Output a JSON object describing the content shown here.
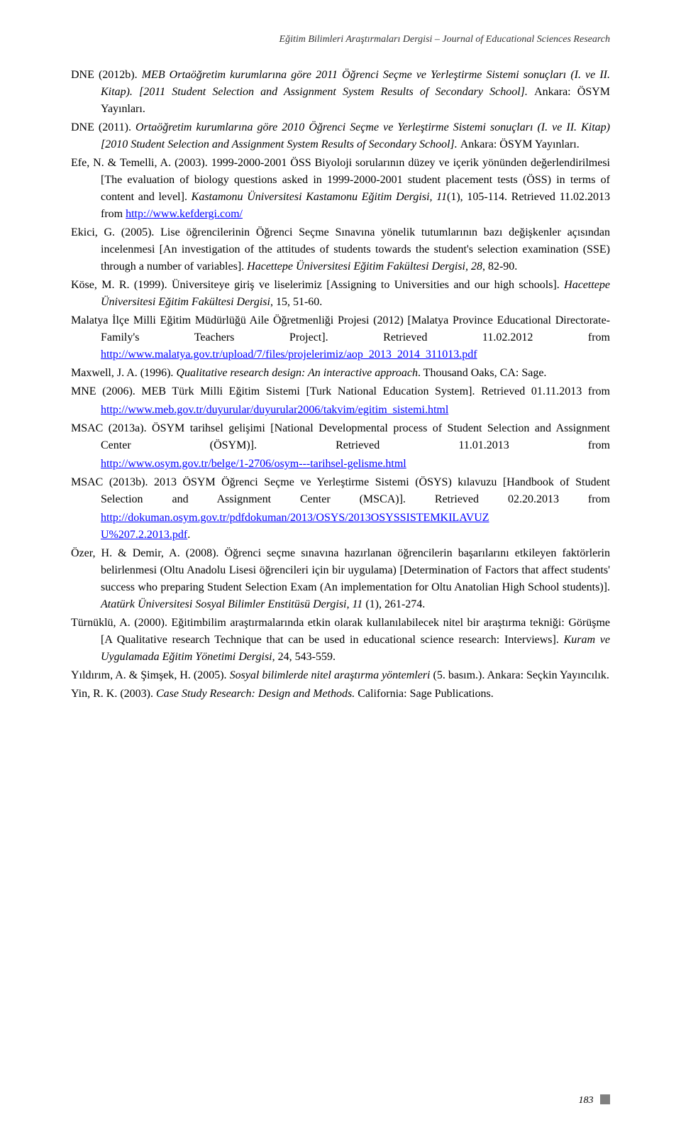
{
  "header": {
    "journal_title": "Eğitim Bilimleri Araştırmaları Dergisi – Journal of Educational Sciences Research"
  },
  "page_number": "183",
  "refs": {
    "dne2012b": {
      "pre": "DNE (2012b). ",
      "italic1": "MEB Ortaöğretim kurumlarına göre 2011 Öğrenci Seçme ve Yerleştirme Sistemi sonuçları (I. ve II. Kitap). [2011 Student Selection and Assignment System Results of Secondary School]. ",
      "post": "Ankara: ÖSYM Yayınları."
    },
    "dne2011": {
      "pre": "DNE (2011). ",
      "italic1": "Ortaöğretim kurumlarına göre 2010 Öğrenci Seçme ve Yerleştirme Sistemi sonuçları (I. ve II. Kitap) [2010 Student Selection and Assignment System Results of Secondary School]. ",
      "post": "Ankara: ÖSYM Yayınları."
    },
    "efe2003": {
      "pre": "Efe, N. & Temelli, A. (2003). 1999-2000-2001 ÖSS Biyoloji sorularının düzey ve içerik yönünden değerlendirilmesi [The evaluation of biology questions asked in 1999-2000-2001 student placement tests (ÖSS) in terms of content and level]. ",
      "italic1": "Kastamonu Üniversitesi Kastamonu Eğitim Dergisi, 11",
      "post1": "(1), 105-114. Retrieved 11.02.2013 from ",
      "link": "http://www.kefdergi.com/"
    },
    "ekici2005": {
      "pre": "Ekici, G. (2005). Lise öğrencilerinin Öğrenci Seçme Sınavına yönelik tutumlarının bazı değişkenler açısından incelenmesi [An investigation of the attitudes of students towards the student's selection examination (SSE) through a number of variables]. ",
      "italic1": "Hacettepe Üniversitesi Eğitim Fakültesi Dergisi, 28",
      "post": ", 82-90."
    },
    "kose1999": {
      "pre": "Köse, M. R. (1999). Üniversiteye giriş ve liselerimiz [Assigning to Universities and our high schools]. ",
      "italic1": "Hacettepe Üniversitesi Eğitim Fakültesi Dergisi",
      "post": ", 15, 51-60."
    },
    "malatya2012": {
      "pre": "Malatya İlçe Milli Eğitim Müdürlüğü Aile Öğretmenliği Projesi (2012) [Malatya Province Educational Directorate- Family's Teachers Project]. Retrieved 11.02.2012 from ",
      "link": "http://www.malatya.gov.tr/upload/7/files/projelerimiz/aop_2013_2014_311013.pdf"
    },
    "maxwell1996": {
      "pre": "Maxwell, J. A. (1996). ",
      "italic1": "Qualitative research design: An interactive approach",
      "post": ". Thousand Oaks, CA: Sage."
    },
    "mne2006": {
      "pre": "MNE (2006). MEB Türk Milli Eğitim Sistemi [Turk National Education System]. Retrieved 01.11.2013 from ",
      "link": "http://www.meb.gov.tr/duyurular/duyurular2006/takvim/egitim_sistemi.html"
    },
    "msac2013a": {
      "pre": "MSAC (2013a). ÖSYM tarihsel gelişimi [National Developmental process of Student Selection and Assignment Center (ÖSYM)]. Retrieved 11.01.2013 from ",
      "link": "http://www.osym.gov.tr/belge/1-2706/osym---tarihsel-gelisme.html"
    },
    "msac2013b": {
      "pre": "MSAC (2013b). 2013 ÖSYM Öğrenci Seçme ve Yerleştirme Sistemi (ÖSYS) kılavuzu [Handbook of Student Selection and Assignment Center (MSCA)]. Retrieved 02.20.2013 from ",
      "link1": "http://dokuman.osym.gov.tr/pdfdokuman/2013/OSYS/2013OSYSSISTEMKILAVUZ",
      "link2": "U%207.2.2013.pdf",
      "post": "."
    },
    "ozer2008": {
      "pre": "Özer, H. & Demir, A. (2008). Öğrenci seçme sınavına hazırlanan öğrencilerin başarılarını etkileyen faktörlerin belirlenmesi (Oltu Anadolu Lisesi öğrencileri için bir uygulama) [Determination of Factors that affect students' success who preparing Student Selection Exam (An implementation for Oltu Anatolian High School students)]. ",
      "italic1": "Atatürk Üniversitesi Sosyal Bilimler Enstitüsü Dergisi, 11 ",
      "post": "(1), 261-274."
    },
    "turnuklu2000": {
      "pre": "Türnüklü, A. (2000). Eğitimbilim araştırmalarında etkin olarak kullanılabilecek nitel bir araştırma tekniği: Görüşme [A Qualitative research Technique that can be used in educational science research: Interviews]. ",
      "italic1": "Kuram ve Uygulamada Eğitim Yönetimi Dergisi",
      "post": ", 24, 543-559."
    },
    "yildirim2005": {
      "pre": "Yıldırım, A. & Şimşek, H. (2005). ",
      "italic1": "Sosyal bilimlerde nitel araştırma yöntemleri ",
      "post": "(5. basım.). Ankara: Seçkin Yayıncılık."
    },
    "yin2003": {
      "pre": "Yin, R. K. (2003). ",
      "italic1": "Case Study Research: Design and Methods. ",
      "post": "California: Sage Publications."
    }
  }
}
